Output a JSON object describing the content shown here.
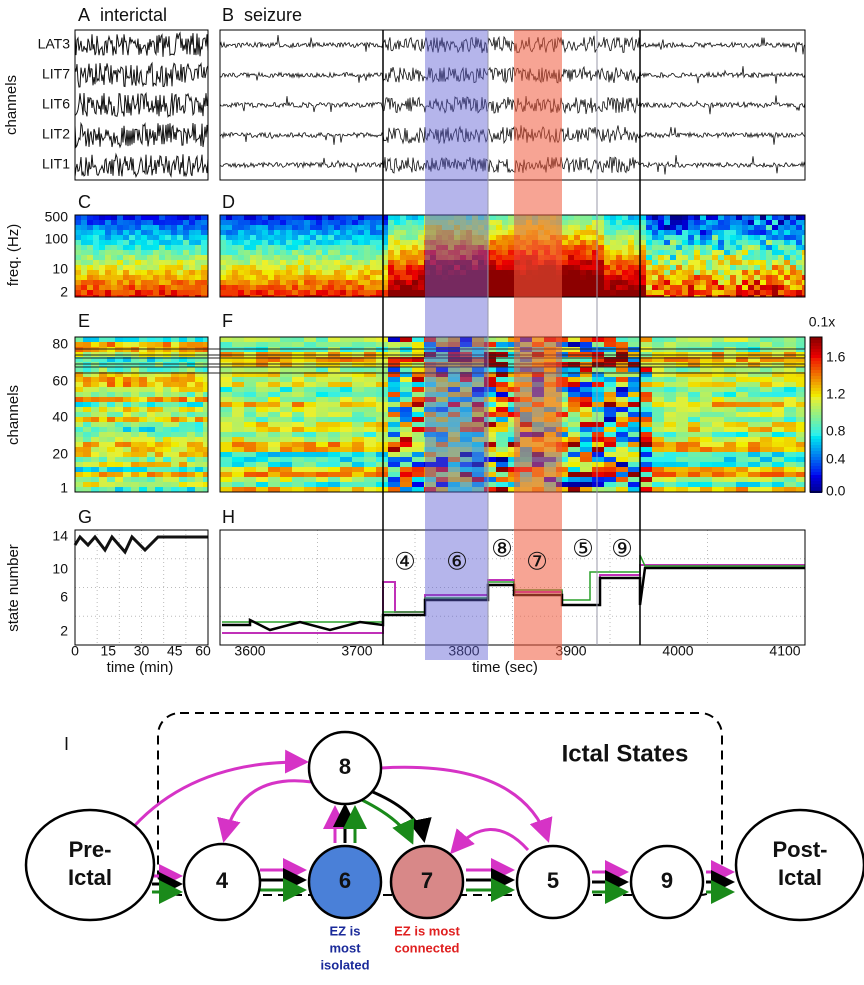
{
  "panel_labels": [
    {
      "letter": "A",
      "title": "interictal"
    },
    {
      "letter": "B",
      "title": "seizure"
    },
    {
      "letter": "C"
    },
    {
      "letter": "D"
    },
    {
      "letter": "E"
    },
    {
      "letter": "F"
    },
    {
      "letter": "G"
    },
    {
      "letter": "H"
    }
  ],
  "channel_names": [
    "LAT3",
    "LIT7",
    "LIT6",
    "LIT2",
    "LIT1"
  ],
  "axis_titles": {
    "channels_top": "channels",
    "freq": "freq. (Hz)",
    "channels": "channels",
    "state": "state number",
    "time_min": "time (min)",
    "time_sec": "time (sec)"
  },
  "freq_ticks": [
    500,
    100,
    10,
    2
  ],
  "channel_ticks": [
    80,
    60,
    40,
    20,
    1
  ],
  "colorbar": {
    "unit": "0.1x",
    "ticks": [
      "1.6",
      "1.2",
      "0.8",
      "0.4",
      "0.0"
    ]
  },
  "state_ticks": [
    14,
    10,
    6,
    2
  ],
  "min_ticks": [
    0,
    15,
    30,
    45,
    60
  ],
  "sec_ticks": [
    3600,
    3700,
    3800,
    3900,
    4000,
    4100
  ],
  "state_markers": [
    "④",
    "⑥",
    "⑧",
    "⑦",
    "⑤",
    "⑨"
  ],
  "diagram": {
    "label": "I",
    "title": "Ictal States",
    "nodes": [
      [
        "Pre-",
        "Ictal"
      ],
      [
        "4"
      ],
      [
        "8"
      ],
      [
        "6"
      ],
      [
        "7"
      ],
      [
        "5"
      ],
      [
        "9"
      ],
      [
        "Post-",
        "Ictal"
      ]
    ],
    "caption_isolated": [
      "EZ is",
      "most",
      "isolated"
    ],
    "caption_connected": [
      "EZ is most",
      "connected"
    ]
  }
}
